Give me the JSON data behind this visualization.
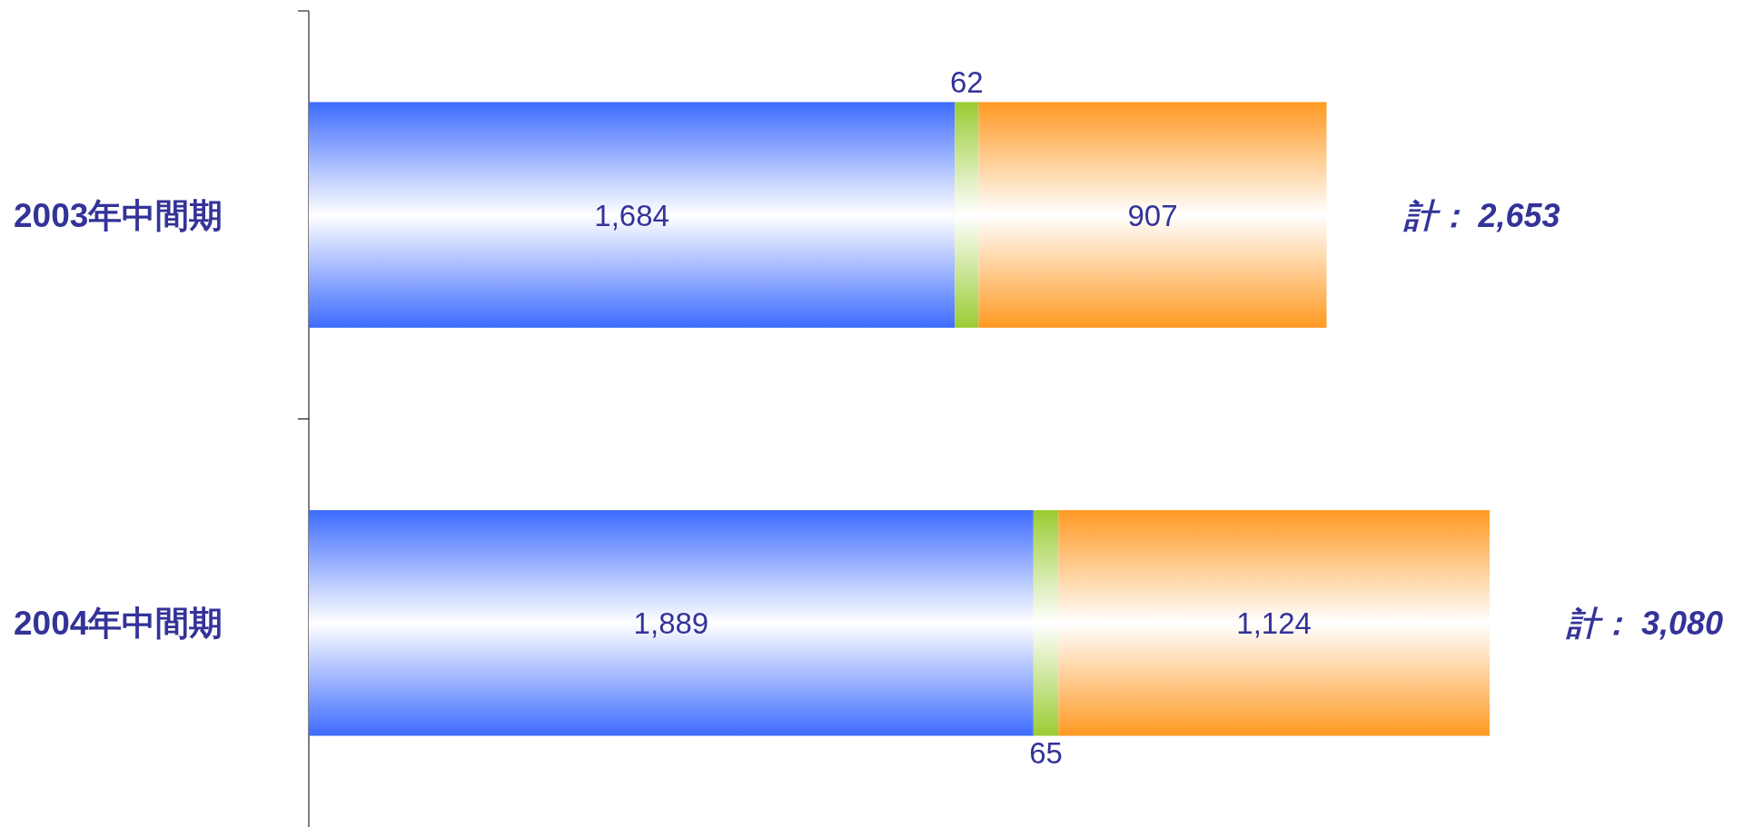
{
  "chart_data": {
    "type": "bar",
    "orientation": "horizontal",
    "stacked": true,
    "tick_labels": "y",
    "categories": [
      "2003年中間期",
      "2004年中間期"
    ],
    "series": [
      {
        "color": "#3d6bff",
        "values": [
          1684,
          1889
        ],
        "value_labels": [
          "1,684",
          "1,889"
        ]
      },
      {
        "color": "#99cc33",
        "values": [
          62,
          65
        ],
        "value_labels": [
          "62",
          "65"
        ]
      },
      {
        "color": "#ff9922",
        "values": [
          907,
          1124
        ],
        "value_labels": [
          "907",
          "1,124"
        ]
      }
    ],
    "totals": [
      "計： 2,653",
      "計： 3,080"
    ]
  }
}
